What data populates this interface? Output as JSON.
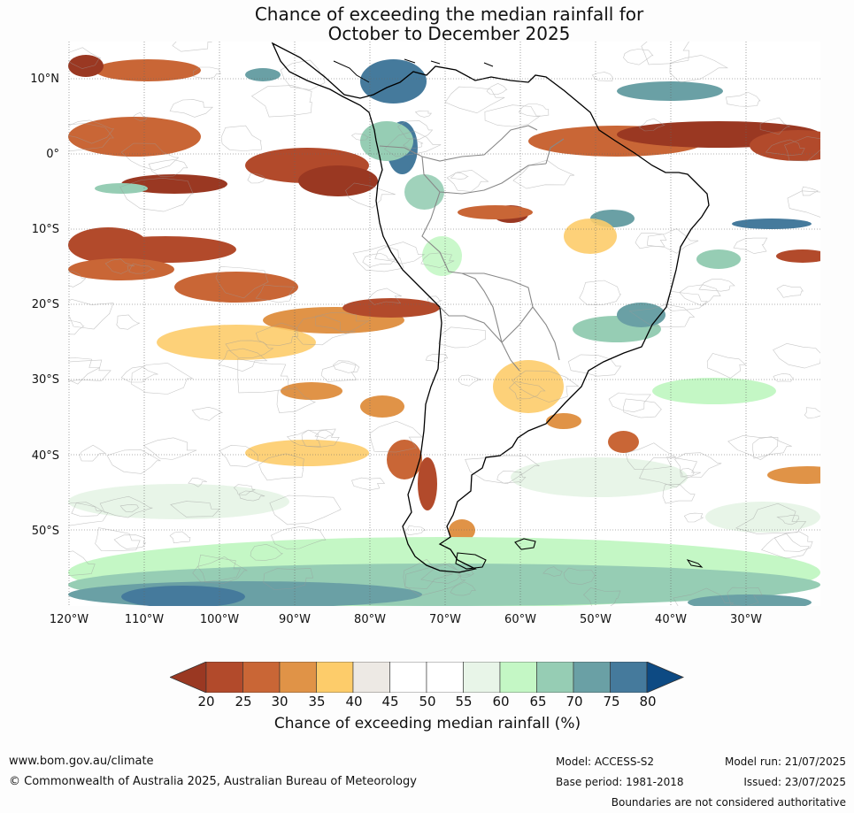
{
  "title_line1": "Chance of exceeding the median rainfall for",
  "title_line2": "October to December 2025",
  "lat_labels": [
    "10°N",
    "0°",
    "10°S",
    "20°S",
    "30°S",
    "40°S",
    "50°S"
  ],
  "lon_labels": [
    "120°W",
    "110°W",
    "100°W",
    "90°W",
    "80°W",
    "70°W",
    "60°W",
    "50°W",
    "40°W",
    "30°W"
  ],
  "colorbar": {
    "title": "Chance of exceeding median rainfall (%)",
    "ticks": [
      "20",
      "25",
      "30",
      "35",
      "40",
      "45",
      "50",
      "55",
      "60",
      "65",
      "70",
      "75",
      "80"
    ],
    "colors": [
      "#9a3822",
      "#b24a2b",
      "#c96636",
      "#e09347",
      "#fdcc6a",
      "#ede9e4",
      "#ffffff",
      "#ffffff",
      "#e8f5e8",
      "#c4f7c5",
      "#96cdb4",
      "#6aa0a5",
      "#457a9c",
      "#0d4a83"
    ]
  },
  "footer": {
    "url": "www.bom.gov.au/climate",
    "copyright": "© Commonwealth of Australia 2025, Australian Bureau of Meteorology",
    "model": "Model: ACCESS-S2",
    "base_period": "Base period: 1981-2018",
    "model_run": "Model run: 21/07/2025",
    "issued": "Issued: 23/07/2025",
    "disclaimer": "Boundaries are not considered authoritative"
  }
}
